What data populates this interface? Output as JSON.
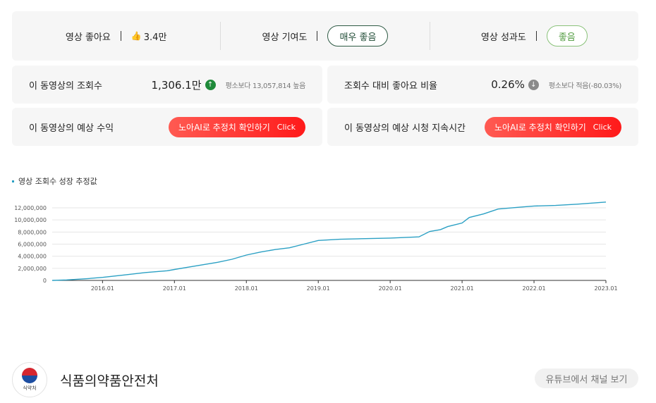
{
  "summary": {
    "likes_label": "영상 좋아요",
    "likes_value": "3.4만",
    "contribution_label": "영상 기여도",
    "contribution_value": "매우 좋음",
    "performance_label": "영상 성과도",
    "performance_value": "좋음"
  },
  "views": {
    "label": "이 동영상의 조회수",
    "value": "1,306.1만",
    "note": "평소보다 13,057,814 높음"
  },
  "like_ratio": {
    "label": "조회수 대비 좋아요 비율",
    "value": "0.26%",
    "note": "평소보다 적음(-80.03%)"
  },
  "revenue": {
    "label": "이 동영상의 예상 수익",
    "button_label": "노아AI로 추정치 확인하기",
    "button_click": "Click"
  },
  "watch_time": {
    "label": "이 동영상의 예상 시청 지속시간",
    "button_label": "노아AI로 추정치 확인하기",
    "button_click": "Click"
  },
  "chart_data": {
    "type": "line",
    "title": "영상 조회수 성장 추정값",
    "ylim": [
      0,
      12000000
    ],
    "y_ticks": [
      "0",
      "2,000,000",
      "4,000,000",
      "6,000,000",
      "8,000,000",
      "10,000,000",
      "12,000,000"
    ],
    "y_tick_values": [
      0,
      2000000,
      4000000,
      6000000,
      8000000,
      10000000,
      12000000
    ],
    "x_ticks": [
      "2016.01",
      "2017.01",
      "2018.01",
      "2019.01",
      "2020.01",
      "2021.01",
      "2022.01",
      "2023.01"
    ],
    "x_tick_values": [
      2016.0,
      2017.0,
      2018.0,
      2019.0,
      2020.0,
      2021.0,
      2022.0,
      2023.0
    ],
    "xlim": [
      2015.3,
      2023.0
    ],
    "grid": true,
    "color": "#2ba0c4",
    "series": [
      {
        "x": [
          2015.3,
          2015.5,
          2015.8,
          2016.0,
          2016.3,
          2016.6,
          2016.9,
          2017.0,
          2017.2,
          2017.4,
          2017.6,
          2017.8,
          2018.0,
          2018.2,
          2018.4,
          2018.6,
          2018.8,
          2019.0,
          2019.3,
          2019.6,
          2020.0,
          2020.2,
          2020.4,
          2020.55,
          2020.7,
          2020.8,
          2021.0,
          2021.1,
          2021.3,
          2021.5,
          2021.8,
          2022.0,
          2022.3,
          2022.6,
          2023.0
        ],
        "y": [
          0,
          80000,
          300000,
          500000,
          900000,
          1300000,
          1600000,
          1800000,
          2200000,
          2600000,
          3000000,
          3500000,
          4200000,
          4700000,
          5100000,
          5400000,
          6000000,
          6600000,
          6800000,
          6900000,
          7000000,
          7100000,
          7200000,
          8100000,
          8400000,
          8900000,
          9500000,
          10400000,
          11000000,
          11800000,
          12100000,
          12300000,
          12400000,
          12600000,
          12950000
        ]
      }
    ]
  },
  "channel": {
    "logo_text": "식약처",
    "name": "식품의약품안전처",
    "button": "유튜브에서 채널 보기"
  },
  "colors": {
    "accent_line": "#2ba0c4",
    "red_button": "#ff2b2b",
    "up_icon": "#1f8a3a",
    "down_icon": "#8a8a8a",
    "pill_dark": "#2e5a44",
    "pill_light": "#8ac27a"
  }
}
